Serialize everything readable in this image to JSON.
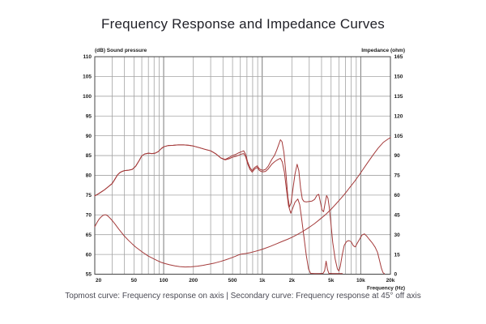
{
  "title": "Frequency Response and Impedance Curves",
  "caption": "Topmost curve: Frequency response on axis | Secondary curve: Frequency response at 45° off axis",
  "chart_data": {
    "type": "line",
    "title": "Frequency Response and Impedance Curves",
    "grid": "on",
    "legend_position": "none",
    "x_axis": {
      "label": "Frequency  (Hz)",
      "scale": "log",
      "min": 20,
      "max": 20000,
      "tick_values": [
        20,
        50,
        100,
        200,
        500,
        1000,
        2000,
        5000,
        10000,
        20000
      ],
      "tick_labels": [
        "20",
        "50",
        "100",
        "200",
        "500",
        "1k",
        "2k",
        "5k",
        "10k",
        "20k"
      ]
    },
    "y_left": {
      "label": "(dB)  Sound pressure",
      "min": 55,
      "max": 110,
      "step": 5
    },
    "y_right": {
      "label": "Impedance  (ohm)",
      "min": 0,
      "max": 165,
      "step": 15
    },
    "colors": {
      "curve": "#a43a3a",
      "grid_minor": "#a3a3a3",
      "grid_decade": "#7a7a7a",
      "frame": "#444444",
      "tick_text": "#1a1a1a"
    },
    "series": [
      {
        "name": "Frequency response on axis",
        "axis": "left",
        "points": [
          [
            20,
            74.8
          ],
          [
            22,
            75.4
          ],
          [
            25,
            76.3
          ],
          [
            28,
            77.3
          ],
          [
            30,
            77.9
          ],
          [
            32,
            79.0
          ],
          [
            34,
            80.1
          ],
          [
            36,
            80.7
          ],
          [
            38,
            81.0
          ],
          [
            40,
            81.2
          ],
          [
            44,
            81.3
          ],
          [
            48,
            81.5
          ],
          [
            52,
            82.3
          ],
          [
            56,
            83.6
          ],
          [
            60,
            84.9
          ],
          [
            64,
            85.4
          ],
          [
            70,
            85.6
          ],
          [
            76,
            85.5
          ],
          [
            82,
            85.6
          ],
          [
            88,
            86.0
          ],
          [
            95,
            86.8
          ],
          [
            100,
            87.2
          ],
          [
            110,
            87.5
          ],
          [
            125,
            87.6
          ],
          [
            140,
            87.7
          ],
          [
            160,
            87.7
          ],
          [
            180,
            87.6
          ],
          [
            200,
            87.4
          ],
          [
            230,
            87.0
          ],
          [
            260,
            86.6
          ],
          [
            300,
            86.2
          ],
          [
            340,
            85.4
          ],
          [
            380,
            84.4
          ],
          [
            420,
            84.0
          ],
          [
            460,
            84.5
          ],
          [
            500,
            85.0
          ],
          [
            540,
            85.3
          ],
          [
            580,
            85.7
          ],
          [
            620,
            86.0
          ],
          [
            650,
            86.2
          ],
          [
            680,
            85.3
          ],
          [
            710,
            83.5
          ],
          [
            750,
            82.0
          ],
          [
            790,
            81.2
          ],
          [
            840,
            82.0
          ],
          [
            890,
            82.4
          ],
          [
            930,
            81.7
          ],
          [
            970,
            81.4
          ],
          [
            1020,
            81.3
          ],
          [
            1080,
            81.5
          ],
          [
            1150,
            82.3
          ],
          [
            1250,
            84.0
          ],
          [
            1330,
            85.0
          ],
          [
            1400,
            86.3
          ],
          [
            1470,
            87.8
          ],
          [
            1530,
            89.0
          ],
          [
            1590,
            88.5
          ],
          [
            1660,
            85.8
          ],
          [
            1740,
            80.5
          ],
          [
            1820,
            74.5
          ],
          [
            1890,
            72.0
          ],
          [
            1960,
            73.0
          ],
          [
            2050,
            76.5
          ],
          [
            2150,
            80.3
          ],
          [
            2260,
            82.8
          ],
          [
            2350,
            81.2
          ],
          [
            2450,
            76.8
          ],
          [
            2550,
            74.0
          ],
          [
            2650,
            73.4
          ],
          [
            2800,
            73.3
          ],
          [
            3000,
            73.4
          ],
          [
            3200,
            73.5
          ],
          [
            3400,
            73.9
          ],
          [
            3600,
            75.0
          ],
          [
            3750,
            75.2
          ],
          [
            3900,
            73.2
          ],
          [
            4050,
            71.2
          ],
          [
            4200,
            70.8
          ],
          [
            4350,
            73.0
          ],
          [
            4500,
            74.9
          ],
          [
            4650,
            74.2
          ],
          [
            4800,
            71.8
          ],
          [
            5000,
            67.5
          ],
          [
            5200,
            63.0
          ],
          [
            5500,
            58.8
          ],
          [
            5800,
            56.3
          ],
          [
            6000,
            55.8
          ],
          [
            6200,
            57.0
          ],
          [
            6500,
            60.0
          ],
          [
            6800,
            62.3
          ],
          [
            7200,
            63.3
          ],
          [
            7600,
            63.5
          ],
          [
            8000,
            63.2
          ],
          [
            8400,
            62.2
          ],
          [
            8800,
            61.9
          ],
          [
            9200,
            62.8
          ],
          [
            9700,
            63.8
          ],
          [
            10300,
            64.9
          ],
          [
            10900,
            65.2
          ],
          [
            11500,
            64.6
          ],
          [
            12200,
            63.8
          ],
          [
            13000,
            63.0
          ],
          [
            14000,
            61.8
          ],
          [
            14800,
            60.5
          ],
          [
            15500,
            58.5
          ],
          [
            16200,
            56.5
          ],
          [
            16800,
            55.4
          ],
          [
            17400,
            55.1
          ]
        ]
      },
      {
        "name": "Frequency response at 45° off axis",
        "axis": "left",
        "points": [
          [
            20,
            74.8
          ],
          [
            22,
            75.4
          ],
          [
            25,
            76.3
          ],
          [
            28,
            77.3
          ],
          [
            30,
            77.9
          ],
          [
            32,
            79.0
          ],
          [
            34,
            80.1
          ],
          [
            36,
            80.7
          ],
          [
            38,
            81.0
          ],
          [
            40,
            81.2
          ],
          [
            44,
            81.3
          ],
          [
            48,
            81.5
          ],
          [
            52,
            82.3
          ],
          [
            56,
            83.6
          ],
          [
            60,
            84.9
          ],
          [
            64,
            85.4
          ],
          [
            70,
            85.6
          ],
          [
            76,
            85.5
          ],
          [
            82,
            85.6
          ],
          [
            88,
            86.0
          ],
          [
            95,
            86.8
          ],
          [
            100,
            87.2
          ],
          [
            110,
            87.5
          ],
          [
            125,
            87.6
          ],
          [
            140,
            87.7
          ],
          [
            160,
            87.7
          ],
          [
            180,
            87.6
          ],
          [
            200,
            87.4
          ],
          [
            230,
            87.0
          ],
          [
            260,
            86.6
          ],
          [
            300,
            86.2
          ],
          [
            340,
            85.4
          ],
          [
            380,
            84.4
          ],
          [
            420,
            83.9
          ],
          [
            460,
            84.2
          ],
          [
            500,
            84.6
          ],
          [
            540,
            84.8
          ],
          [
            580,
            85.1
          ],
          [
            620,
            85.4
          ],
          [
            650,
            85.5
          ],
          [
            680,
            84.7
          ],
          [
            710,
            83.0
          ],
          [
            750,
            81.5
          ],
          [
            790,
            80.8
          ],
          [
            840,
            81.6
          ],
          [
            890,
            82.0
          ],
          [
            930,
            81.3
          ],
          [
            970,
            81.0
          ],
          [
            1020,
            80.9
          ],
          [
            1080,
            81.0
          ],
          [
            1150,
            81.6
          ],
          [
            1250,
            82.8
          ],
          [
            1330,
            83.4
          ],
          [
            1400,
            83.8
          ],
          [
            1470,
            84.1
          ],
          [
            1530,
            84.3
          ],
          [
            1600,
            83.4
          ],
          [
            1680,
            80.8
          ],
          [
            1760,
            76.5
          ],
          [
            1850,
            72.3
          ],
          [
            1950,
            70.4
          ],
          [
            2050,
            71.8
          ],
          [
            2150,
            73.2
          ],
          [
            2300,
            74.0
          ],
          [
            2400,
            72.6
          ],
          [
            2500,
            69.5
          ],
          [
            2650,
            64.5
          ],
          [
            2800,
            59.8
          ],
          [
            2950,
            56.3
          ],
          [
            3100,
            55.2
          ],
          [
            3400,
            55.15
          ],
          [
            3800,
            55.15
          ],
          [
            4150,
            55.2
          ],
          [
            4300,
            55.9
          ],
          [
            4450,
            58.3
          ],
          [
            4600,
            56.2
          ],
          [
            4750,
            55.2
          ],
          [
            5200,
            55.15
          ],
          [
            6000,
            55.15
          ],
          [
            6500,
            55.15
          ]
        ]
      },
      {
        "name": "Impedance",
        "axis": "right",
        "points": [
          [
            20,
            36
          ],
          [
            21,
            39
          ],
          [
            22,
            41.5
          ],
          [
            23,
            43.2
          ],
          [
            24,
            44.4
          ],
          [
            25,
            45
          ],
          [
            26,
            45
          ],
          [
            27,
            44.3
          ],
          [
            28,
            43.2
          ],
          [
            30,
            40.8
          ],
          [
            32,
            38.2
          ],
          [
            35,
            34.2
          ],
          [
            38,
            30.9
          ],
          [
            40,
            28.9
          ],
          [
            44,
            25.6
          ],
          [
            48,
            22.9
          ],
          [
            52,
            20.6
          ],
          [
            58,
            17.9
          ],
          [
            64,
            15.6
          ],
          [
            70,
            13.7
          ],
          [
            78,
            11.9
          ],
          [
            86,
            10.3
          ],
          [
            95,
            8.9
          ],
          [
            105,
            7.9
          ],
          [
            115,
            7.1
          ],
          [
            130,
            6.3
          ],
          [
            145,
            5.8
          ],
          [
            165,
            5.5
          ],
          [
            190,
            5.6
          ],
          [
            220,
            6.1
          ],
          [
            250,
            6.7
          ],
          [
            290,
            7.6
          ],
          [
            330,
            8.5
          ],
          [
            380,
            9.7
          ],
          [
            430,
            11.0
          ],
          [
            490,
            12.5
          ],
          [
            540,
            13.7
          ],
          [
            580,
            14.7
          ],
          [
            620,
            15.3
          ],
          [
            680,
            15.7
          ],
          [
            750,
            16.3
          ],
          [
            850,
            17.3
          ],
          [
            950,
            18.4
          ],
          [
            1050,
            19.4
          ],
          [
            1200,
            21.0
          ],
          [
            1400,
            23.1
          ],
          [
            1600,
            24.9
          ],
          [
            1800,
            26.4
          ],
          [
            2000,
            27.9
          ],
          [
            2300,
            30.3
          ],
          [
            2600,
            32.6
          ],
          [
            3000,
            35.6
          ],
          [
            3400,
            38.4
          ],
          [
            3900,
            42.0
          ],
          [
            4400,
            45.2
          ],
          [
            5000,
            49.2
          ],
          [
            5600,
            53.2
          ],
          [
            6300,
            57.6
          ],
          [
            7000,
            61.6
          ],
          [
            7800,
            66.1
          ],
          [
            8700,
            70.6
          ],
          [
            9700,
            75.6
          ],
          [
            10800,
            80.6
          ],
          [
            12000,
            85.6
          ],
          [
            13500,
            91.0
          ],
          [
            15000,
            95.6
          ],
          [
            17000,
            100.1
          ],
          [
            19000,
            102.6
          ],
          [
            20000,
            103.6
          ]
        ]
      }
    ]
  }
}
